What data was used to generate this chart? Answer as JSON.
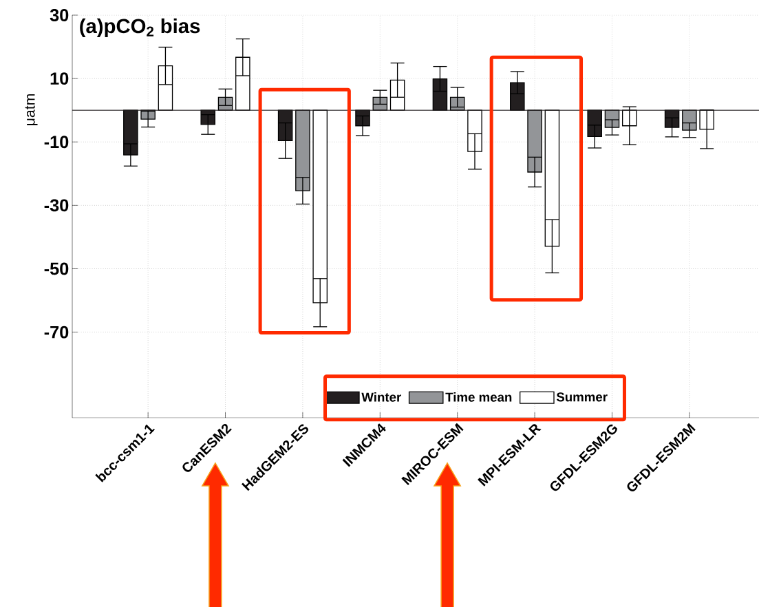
{
  "chart_data": {
    "type": "bar",
    "title": "(a)pCO$_{2}$ bias",
    "ylabel": "μatm",
    "categories": [
      "bcc-csm1-1",
      "CanESM2",
      "HadGEM2-ES",
      "INMCM4",
      "MIROC-ESM",
      "MPI-ESM-LR",
      "GFDL-ESM2G",
      "GFDL-ESM2M"
    ],
    "series": [
      {
        "name": "Winter",
        "color": "#231f20",
        "values": [
          -14.1,
          -4.5,
          -9.6,
          -4.9,
          9.9,
          8.7,
          -8.3,
          -5.4
        ],
        "errors": [
          3.5,
          3.1,
          5.6,
          3.1,
          3.9,
          3.5,
          3.6,
          3.0
        ]
      },
      {
        "name": "Time mean",
        "color": "#939598",
        "values": [
          -2.8,
          4.1,
          -25.4,
          4.1,
          4.1,
          -19.5,
          -5.4,
          -6.3
        ],
        "errors": [
          2.5,
          2.6,
          4.2,
          2.2,
          3.1,
          4.7,
          2.4,
          2.3
        ]
      },
      {
        "name": "Summer",
        "color": "#ffffff",
        "values": [
          14.0,
          16.7,
          -60.7,
          9.5,
          -13.0,
          -42.9,
          -4.9,
          -6.0
        ],
        "errors": [
          5.9,
          5.8,
          7.6,
          5.4,
          5.6,
          8.4,
          6.0,
          6.1
        ]
      }
    ],
    "ylim": [
      -97,
      30
    ],
    "yticks": [
      -70,
      -50,
      -30,
      -10,
      10,
      30
    ],
    "ref_lines": [
      {
        "axis": "y",
        "value": 0,
        "color": "#231f20"
      }
    ],
    "grid": true,
    "legend": "bottom"
  }
}
